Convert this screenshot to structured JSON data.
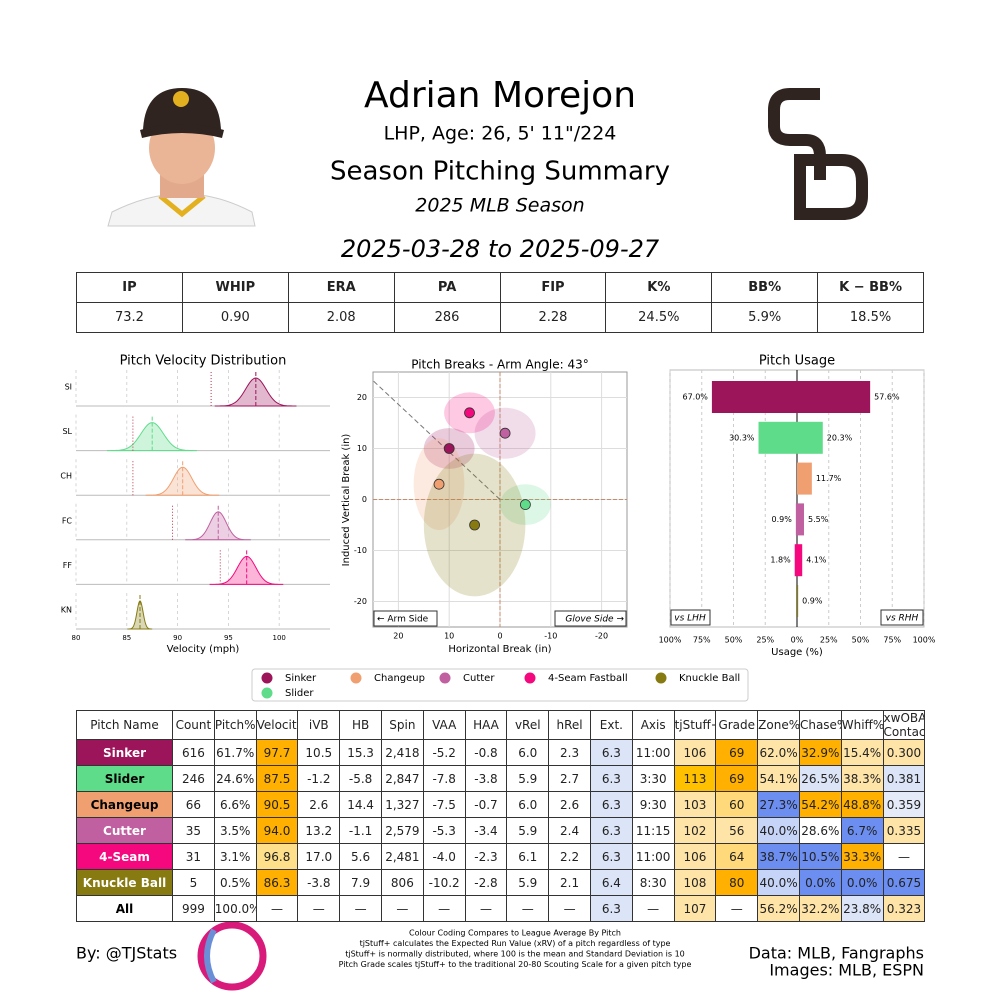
{
  "header": {
    "name": "Adrian Morejon",
    "bio": "LHP, Age: 26, 5' 11\"/224",
    "title": "Season Pitching Summary",
    "season": "2025 MLB Season",
    "dates": "2025-03-28 to 2025-09-27"
  },
  "stats": {
    "headers": [
      "IP",
      "WHIP",
      "ERA",
      "PA",
      "FIP",
      "K%",
      "BB%",
      "K − BB%"
    ],
    "values": [
      "73.2",
      "0.90",
      "2.08",
      "286",
      "2.28",
      "24.5%",
      "5.9%",
      "18.5%"
    ]
  },
  "chart_data": [
    {
      "type": "density",
      "title": "Pitch Velocity Distribution",
      "x_label": "Velocity (mph)",
      "categories": [
        "SI",
        "SL",
        "CH",
        "FC",
        "FF",
        "KN"
      ],
      "colors": [
        "#9c1459",
        "#5edc8a",
        "#f0a070",
        "#c060a0",
        "#f5077e",
        "#867a11"
      ],
      "values": [
        97.7,
        87.5,
        90.5,
        94.0,
        96.8,
        86.3
      ],
      "sd": [
        1.0,
        1.1,
        0.9,
        0.8,
        0.9,
        0.3
      ],
      "league_avg": [
        93.3,
        85.6,
        85.6,
        89.5,
        94.2,
        null
      ],
      "xlim": [
        80,
        105
      ],
      "xticks": [
        80,
        85,
        90,
        95,
        100
      ],
      "grid": true
    },
    {
      "type": "scatter",
      "title": "Pitch Breaks - Arm Angle: 43°",
      "x_label": "Horizontal Break (in)",
      "y_label": "Induced Vertical Break (in)",
      "xlim": [
        25,
        -25
      ],
      "ylim": [
        -25,
        25
      ],
      "xticks": [
        20,
        10,
        0,
        -10,
        -20
      ],
      "yticks": [
        20,
        10,
        0,
        -10,
        -20
      ],
      "arm_angle": 43,
      "grid": true,
      "annotations": [
        "← Arm Side",
        "Glove Side →"
      ],
      "series": [
        {
          "color": "#9c1459",
          "x": [
            10
          ],
          "values": [
            10
          ],
          "spread_x": 5,
          "spread_y": 4
        },
        {
          "color": "#5edc8a",
          "x": [
            -5
          ],
          "values": [
            -1
          ],
          "spread_x": 5,
          "spread_y": 4
        },
        {
          "color": "#f0a070",
          "x": [
            12
          ],
          "values": [
            3
          ],
          "spread_x": 5,
          "spread_y": 9
        },
        {
          "color": "#c060a0",
          "x": [
            -1
          ],
          "values": [
            13
          ],
          "spread_x": 6,
          "spread_y": 5
        },
        {
          "color": "#f5077e",
          "x": [
            6
          ],
          "values": [
            17
          ],
          "spread_x": 5,
          "spread_y": 4
        },
        {
          "color": "#867a11",
          "x": [
            5
          ],
          "values": [
            -5
          ],
          "spread_x": 10,
          "spread_y": 14
        }
      ]
    },
    {
      "type": "bar",
      "title": "Pitch Usage",
      "x_label": "Usage (%)",
      "colors": [
        "#9c1459",
        "#5edc8a",
        "#f0a070",
        "#c060a0",
        "#f5077e",
        "#867a11"
      ],
      "xlim": [
        -100,
        100
      ],
      "xticks": [
        {
          "value": -100,
          "label": "100%"
        },
        {
          "value": -75,
          "label": "75%"
        },
        {
          "value": -50,
          "label": "50%"
        },
        {
          "value": -25,
          "label": "25%"
        },
        {
          "value": 0,
          "label": "0%"
        },
        {
          "value": 25,
          "label": "25%"
        },
        {
          "value": 50,
          "label": "50%"
        },
        {
          "value": 75,
          "label": "75%"
        },
        {
          "value": 100,
          "label": "100%"
        }
      ],
      "series": [
        {
          "name": "vs LHH",
          "values": [
            67.0,
            30.3,
            null,
            0.9,
            1.8,
            null
          ],
          "value_labels": [
            "67.0%",
            "30.3%",
            null,
            "0.9%",
            "1.8%",
            null
          ]
        },
        {
          "name": "vs RHH",
          "values": [
            57.6,
            20.3,
            11.7,
            5.5,
            4.1,
            0.9
          ],
          "value_labels": [
            "57.6%",
            "20.3%",
            "11.7%",
            "5.5%",
            "4.1%",
            "0.9%"
          ]
        }
      ]
    }
  ],
  "legend": [
    {
      "name": "Sinker",
      "color": "#9c1459"
    },
    {
      "name": "Changeup",
      "color": "#f0a070"
    },
    {
      "name": "Cutter",
      "color": "#c060a0"
    },
    {
      "name": "4-Seam Fastball",
      "color": "#f5077e"
    },
    {
      "name": "Knuckle Ball",
      "color": "#867a11"
    },
    {
      "name": "Slider",
      "color": "#5edc8a"
    }
  ],
  "table": {
    "headers": [
      "Pitch Name",
      "Count",
      "Pitch%",
      "Velocity",
      "iVB",
      "HB",
      "Spin",
      "VAA",
      "HAA",
      "vRel",
      "hRel",
      "Ext.",
      "Axis",
      "tjStuff+",
      "Grade",
      "Zone%",
      "Chase%",
      "Whiff%",
      "xwOBA Contact"
    ],
    "rows": [
      [
        "Sinker",
        "616",
        "61.7%",
        "97.7",
        "10.5",
        "15.3",
        "2,418",
        "-5.2",
        "-0.8",
        "6.0",
        "2.3",
        "6.3",
        "11:00",
        "106",
        "69",
        "62.0%",
        "32.9%",
        "15.4%",
        "0.300"
      ],
      [
        "Slider",
        "246",
        "24.6%",
        "87.5",
        "-1.2",
        "-5.8",
        "2,847",
        "-7.8",
        "-3.8",
        "5.9",
        "2.7",
        "6.3",
        "3:30",
        "113",
        "69",
        "54.1%",
        "26.5%",
        "38.3%",
        "0.381"
      ],
      [
        "Changeup",
        "66",
        "6.6%",
        "90.5",
        "2.6",
        "14.4",
        "1,327",
        "-7.5",
        "-0.7",
        "6.0",
        "2.6",
        "6.3",
        "9:30",
        "103",
        "60",
        "27.3%",
        "54.2%",
        "48.8%",
        "0.359"
      ],
      [
        "Cutter",
        "35",
        "3.5%",
        "94.0",
        "13.2",
        "-1.1",
        "2,579",
        "-5.3",
        "-3.4",
        "5.9",
        "2.4",
        "6.3",
        "11:15",
        "102",
        "56",
        "40.0%",
        "28.6%",
        "6.7%",
        "0.335"
      ],
      [
        "4-Seam",
        "31",
        "3.1%",
        "96.8",
        "17.0",
        "5.6",
        "2,481",
        "-4.0",
        "-2.3",
        "6.1",
        "2.2",
        "6.3",
        "11:00",
        "106",
        "64",
        "38.7%",
        "10.5%",
        "33.3%",
        "—"
      ],
      [
        "Knuckle Ball",
        "5",
        "0.5%",
        "86.3",
        "-3.8",
        "7.9",
        "806",
        "-10.2",
        "-2.8",
        "5.9",
        "2.1",
        "6.4",
        "8:30",
        "108",
        "80",
        "40.0%",
        "0.0%",
        "0.0%",
        "0.675"
      ],
      [
        "All",
        "999",
        "100.0%",
        "—",
        "—",
        "—",
        "—",
        "—",
        "—",
        "—",
        "—",
        "6.3",
        "—",
        "107",
        "—",
        "56.2%",
        "32.2%",
        "23.8%",
        "0.323"
      ]
    ],
    "name_colors": [
      "#9c1459",
      "#5edc8a",
      "#f0a070",
      "#c060a0",
      "#f5077e",
      "#867a11",
      "#ffffff"
    ],
    "name_text_colors": [
      "#ffffff",
      "#000000",
      "#000000",
      "#ffffff",
      "#ffffff",
      "#ffffff",
      "#000000"
    ],
    "cell_colors": [
      [
        "#ffffff",
        "#ffffff",
        "#ffb000",
        "#ffffff",
        "#ffffff",
        "#ffffff",
        "#ffffff",
        "#ffffff",
        "#ffffff",
        "#ffffff",
        "#dce4f7",
        "#ffffff",
        "#ffe4a8",
        "#ffb000",
        "#ffe4a8",
        "#ffb000",
        "#ffe4a8",
        "#ffe4a8"
      ],
      [
        "#ffffff",
        "#ffffff",
        "#ffb000",
        "#ffffff",
        "#ffffff",
        "#ffffff",
        "#ffffff",
        "#ffffff",
        "#ffffff",
        "#ffffff",
        "#dce4f7",
        "#ffffff",
        "#ffc000",
        "#ffb000",
        "#ffe4a8",
        "#dce4f7",
        "#ffe4a8",
        "#dce4f7"
      ],
      [
        "#ffffff",
        "#ffffff",
        "#ffb000",
        "#ffffff",
        "#ffffff",
        "#ffffff",
        "#ffffff",
        "#ffffff",
        "#ffffff",
        "#ffffff",
        "#dce4f7",
        "#ffffff",
        "#ffe4a8",
        "#ffd97a",
        "#6c8ef0",
        "#ffb000",
        "#ffb000",
        "#e4eaf8"
      ],
      [
        "#ffffff",
        "#ffffff",
        "#ffb000",
        "#ffffff",
        "#ffffff",
        "#ffffff",
        "#ffffff",
        "#ffffff",
        "#ffffff",
        "#ffffff",
        "#dce4f7",
        "#ffffff",
        "#ffe4a8",
        "#ffe4a8",
        "#c6d4f7",
        "#ffffff",
        "#6c8ef0",
        "#ffe4a8"
      ],
      [
        "#ffffff",
        "#ffffff",
        "#ffe08a",
        "#ffffff",
        "#ffffff",
        "#ffffff",
        "#ffffff",
        "#ffffff",
        "#ffffff",
        "#ffffff",
        "#dce4f7",
        "#ffffff",
        "#ffe4a8",
        "#ffd97a",
        "#6c8ef0",
        "#6c8ef0",
        "#ffb000",
        "#ffffff"
      ],
      [
        "#ffffff",
        "#ffffff",
        "#ffb000",
        "#ffffff",
        "#ffffff",
        "#ffffff",
        "#ffffff",
        "#ffffff",
        "#ffffff",
        "#ffffff",
        "#dce4f7",
        "#ffffff",
        "#ffe4a8",
        "#ffb000",
        "#c6d4f7",
        "#6c8ef0",
        "#6c8ef0",
        "#6c8ef0"
      ],
      [
        "#ffffff",
        "#ffffff",
        "#ffffff",
        "#ffffff",
        "#ffffff",
        "#ffffff",
        "#ffffff",
        "#ffffff",
        "#ffffff",
        "#ffffff",
        "#dce4f7",
        "#ffffff",
        "#ffe4a8",
        "#ffffff",
        "#ffe4a8",
        "#ffe4a8",
        "#dce4f7",
        "#ffe4a8"
      ]
    ]
  },
  "footer": {
    "credit": "By: @TJStats",
    "notes": [
      "Colour Coding Compares to League Average By Pitch",
      "tjStuff+ calculates the Expected Run Value (xRV) of a pitch regardless of type",
      "tjStuff+ is normally distributed, where 100 is the mean and Standard Deviation is 10",
      "Pitch Grade scales tjStuff+ to the traditional 20-80 Scouting Scale for a given pitch type"
    ],
    "data_source": "Data: MLB, Fangraphs",
    "image_source": "Images: MLB, ESPN"
  }
}
